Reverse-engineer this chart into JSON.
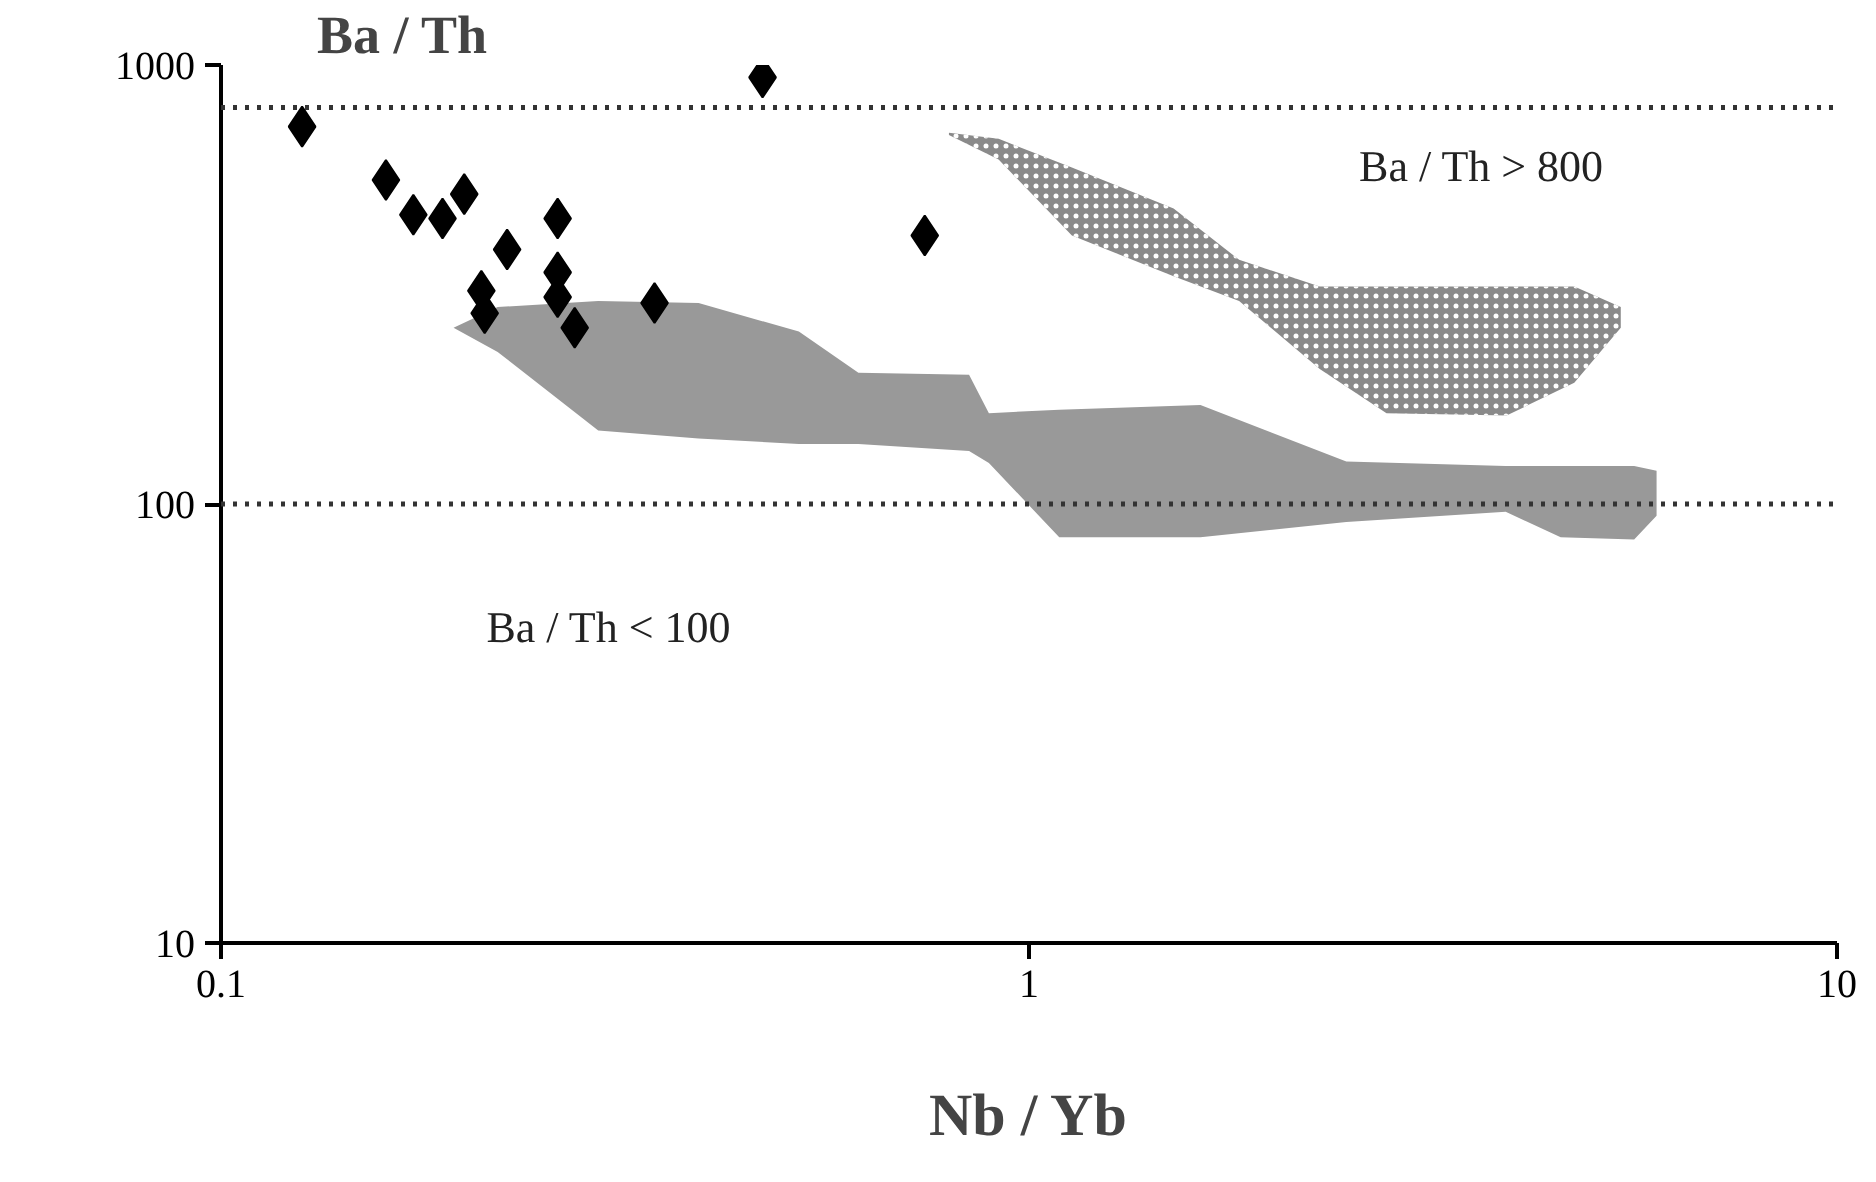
{
  "chart_data": {
    "type": "scatter",
    "xlabel": "Nb / Yb",
    "ylabel": "Ba / Th",
    "log": "xy",
    "xlim": [
      0.1,
      10
    ],
    "ylim": [
      10,
      1000
    ],
    "xticks": [
      0.1,
      1,
      10
    ],
    "yticks": [
      10,
      100,
      1000
    ],
    "grid": false,
    "series": [
      {
        "type": "line",
        "color": "#999999",
        "x": [
          0.194,
          0.22,
          0.293,
          0.39,
          0.519,
          0.615,
          0.843,
          0.892,
          1.09,
          1.63,
          2.47,
          3.89,
          4.55,
          5.61,
          5.98
        ],
        "values": [
          null,
          null,
          null,
          null,
          null,
          null,
          null,
          null,
          null,
          null,
          null,
          null,
          null,
          null,
          null
        ],
        "lower": [
          252,
          222,
          147,
          141,
          137,
          137,
          132,
          124,
          84,
          84,
          91,
          96,
          84,
          83,
          94
        ],
        "upper": [
          252,
          281,
          290,
          287,
          247,
          199,
          197,
          161,
          164,
          168,
          125,
          122,
          122,
          122,
          119
        ]
      },
      {
        "type": "line",
        "color": "#8a8a8a",
        "x": [
          0.796,
          0.917,
          1.13,
          1.51,
          1.82,
          2.29,
          2.77,
          3.9,
          4.73,
          5.4
        ],
        "values": [
          null,
          null,
          null,
          null,
          null,
          null,
          null,
          null,
          null,
          null
        ],
        "lower": [
          693,
          609,
          409,
          330,
          290,
          203,
          161,
          159,
          189,
          252
        ],
        "upper": [
          701,
          679,
          584,
          471,
          360,
          313,
          313,
          313,
          313,
          281
        ]
      },
      {
        "color": "#000000",
        "marker": "diamond",
        "x": [
          0.126,
          0.16,
          0.173,
          0.188,
          0.2,
          0.261,
          0.226,
          0.21,
          0.212,
          0.261,
          0.261,
          0.274,
          0.344,
          0.468,
          0.743
        ],
        "values": [
          724,
          547,
          456,
          447,
          508,
          447,
          380,
          306,
          272,
          337,
          296,
          252,
          287,
          937,
          409
        ]
      }
    ],
    "ref_lines": [
      {
        "axis": "y",
        "value": 800,
        "line_style": "dotted",
        "color": "#333333"
      },
      {
        "axis": "y",
        "value": 100,
        "line_style": "dotted",
        "color": "#333333"
      }
    ],
    "annotations": [
      "Ba / Th > 800",
      "Ba / Th < 100"
    ]
  }
}
